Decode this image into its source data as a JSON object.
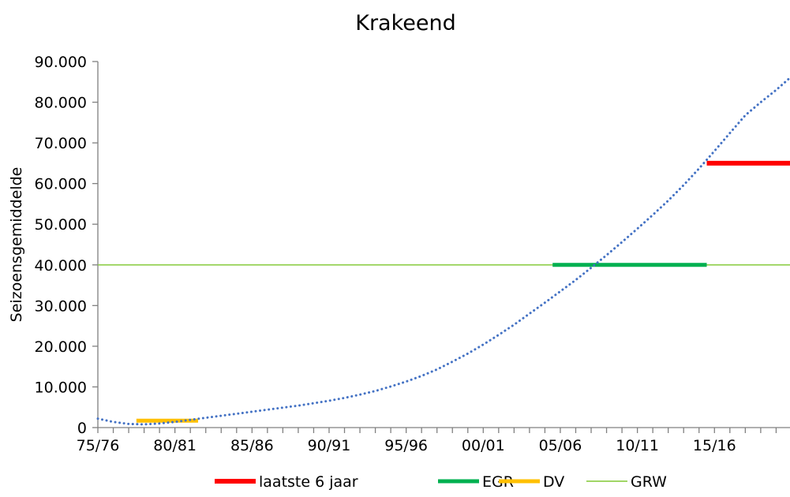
{
  "chart_data": {
    "type": "line",
    "title": "Krakeend",
    "xlabel": "",
    "ylabel": "Seizoensgemiddelde",
    "x_ticks": [
      "75/76",
      "80/81",
      "85/86",
      "90/91",
      "95/96",
      "00/01",
      "05/06",
      "10/11",
      "15/16"
    ],
    "x_tick_values": [
      1975,
      1980,
      1985,
      1990,
      1995,
      2000,
      2005,
      2010,
      2015
    ],
    "xlim": [
      1975,
      2019.9
    ],
    "y_ticks": [
      "0",
      "10.000",
      "20.000",
      "30.000",
      "40.000",
      "50.000",
      "60.000",
      "70.000",
      "80.000",
      "90.000"
    ],
    "y_tick_values": [
      0,
      10000,
      20000,
      30000,
      40000,
      50000,
      60000,
      70000,
      80000,
      90000
    ],
    "ylim": [
      0,
      90000
    ],
    "grid": false,
    "legend_position": "bottom",
    "series": [
      {
        "name": "",
        "style": "dotted",
        "color": "#4472C4",
        "x": [
          1975,
          1976,
          1977,
          1978,
          1979,
          1980,
          1981,
          1982,
          1983,
          1984,
          1985,
          1986,
          1987,
          1988,
          1989,
          1990,
          1991,
          1992,
          1993,
          1994,
          1995,
          1996,
          1997,
          1998,
          1999,
          2000,
          2001,
          2002,
          2003,
          2004,
          2005,
          2006,
          2007,
          2008,
          2009,
          2010,
          2011,
          2012,
          2013,
          2014,
          2015,
          2016,
          2017,
          2018,
          2019,
          2019.9
        ],
        "y": [
          2200,
          1400,
          900,
          800,
          1000,
          1400,
          1900,
          2400,
          2900,
          3400,
          3900,
          4400,
          4900,
          5400,
          6000,
          6600,
          7300,
          8100,
          9000,
          10100,
          11300,
          12700,
          14300,
          16200,
          18200,
          20400,
          22800,
          25300,
          28000,
          30700,
          33500,
          36300,
          39300,
          42400,
          45600,
          48900,
          52300,
          55800,
          59600,
          63700,
          68000,
          72400,
          76800,
          80000,
          83000,
          86000
        ]
      },
      {
        "name": "laatste 6 jaar",
        "color": "#FF0000",
        "x": [
          2014.5,
          2019.9
        ],
        "y": [
          65000,
          65000
        ]
      },
      {
        "name": "EGR",
        "color": "#00B050",
        "x": [
          2004.5,
          2014.5
        ],
        "y": [
          40000,
          40000
        ]
      },
      {
        "name": "DV",
        "color": "#FFC000",
        "x": [
          1977.5,
          1981.5
        ],
        "y": [
          1700,
          1700
        ]
      },
      {
        "name": "GRW",
        "color": "#92D050",
        "x": [
          1975,
          2019.9
        ],
        "y": [
          40000,
          40000
        ]
      }
    ]
  }
}
